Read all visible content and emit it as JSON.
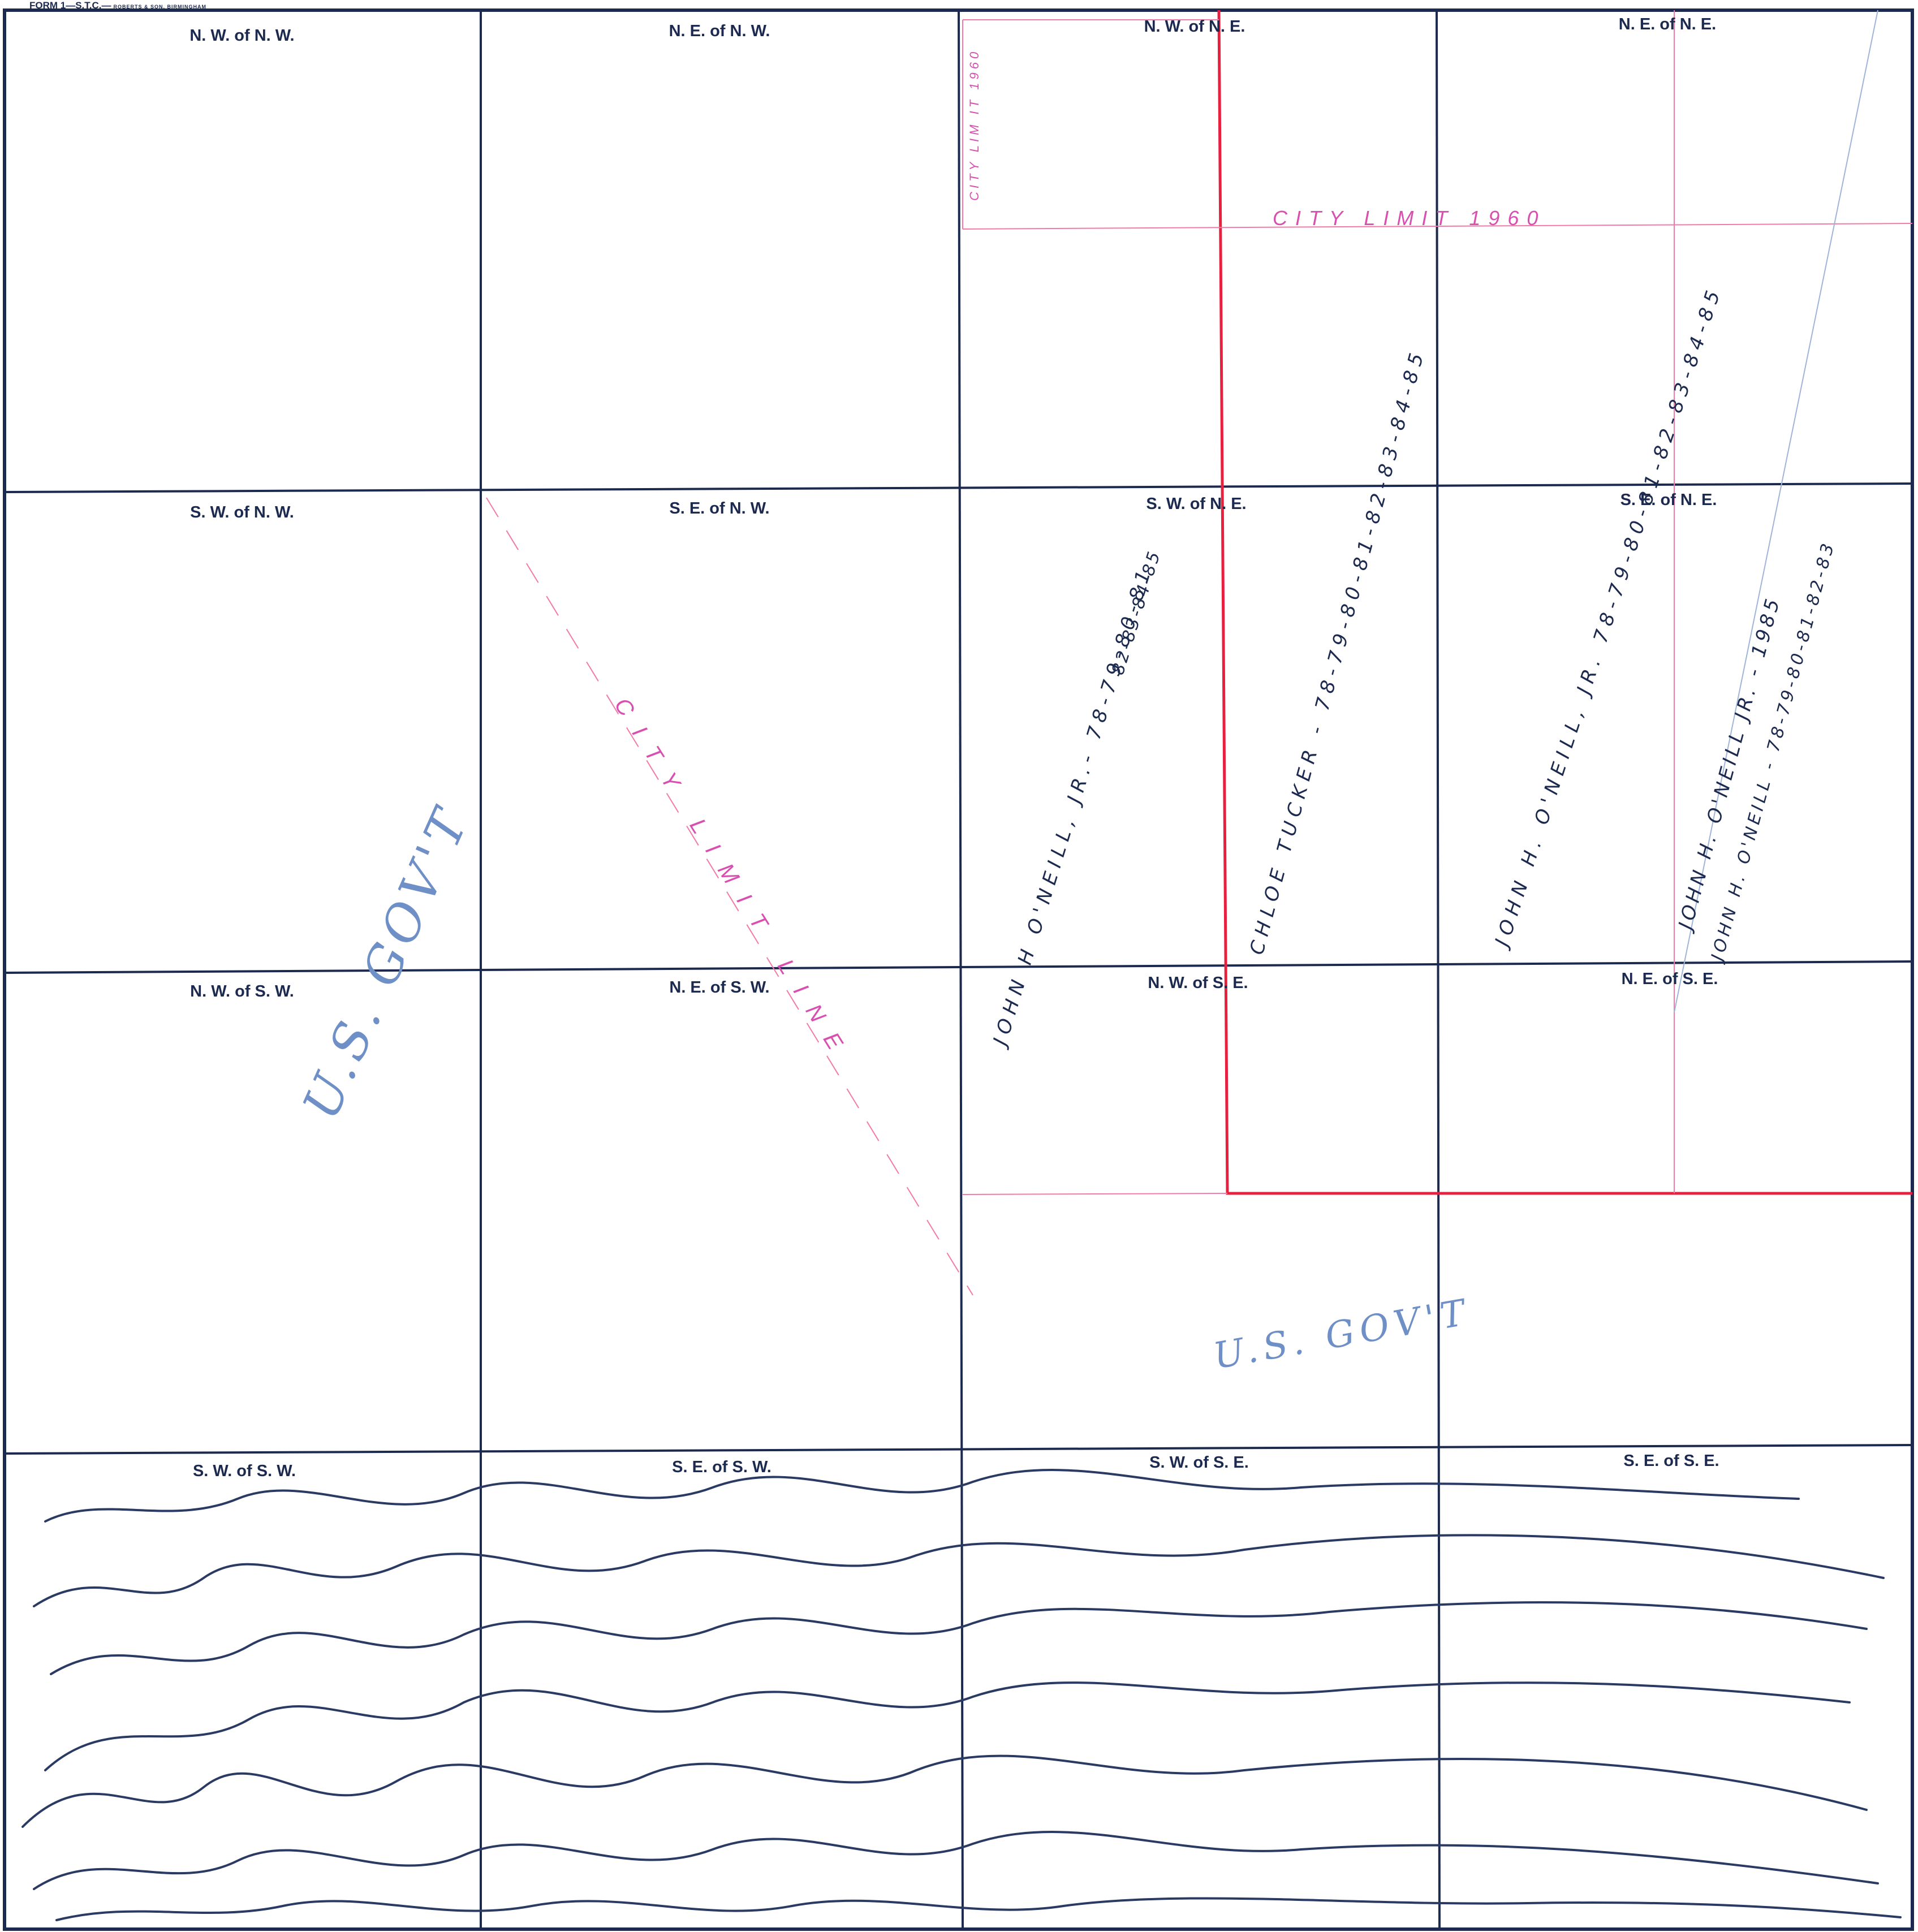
{
  "header": {
    "form_id": "FORM 1—S.T.C.—",
    "printer": "ROBERTS & SON, BIRMINGHAM"
  },
  "colors": {
    "ink": "#1d2a4f",
    "red_line": "#e8203f",
    "pink_line": "#f27aa8",
    "magenta_text": "#d94fb0",
    "pencil_blue": "#6f8fc7"
  },
  "quarter_labels": [
    [
      "N. W. of N. W.",
      "N. E. of N. W.",
      "N. W. of N. E.",
      "N. E. of N. E."
    ],
    [
      "S. W. of N. W.",
      "S. E. of N. W.",
      "S. W. of N. E.",
      "S. E. of N. E."
    ],
    [
      "N. W. of S. W.",
      "N. E. of S. W.",
      "N. W. of S. E.",
      "N. E. of S. E."
    ],
    [
      "S. W. of S. W.",
      "S. E. of S. W.",
      "S. W. of S. E.",
      "S. E. of S. E."
    ]
  ],
  "annotations": {
    "city_limit": "CITY LIMIT 1960",
    "city_limit_vertical": "CITY LIM IT 1960",
    "city_limit_diagonal": "CITY LIMIT LINE",
    "owner_1a": "JOHN H O'NEILL, JR.- 78-79-80-81",
    "owner_1b": "82-83-84-85",
    "owner_2": "CHLOE TUCKER - 78-79-80-81-82-83-84-85",
    "owner_3": "JOHN H. O'NEILL, JR. 78-79-80-81-82-83-84-85",
    "owner_4a": "JOHN H. O'NEILL JR. - 1985",
    "owner_4b": "JOHN H. O'NEILL - 78-79-80-81-82-83",
    "gov_1": "U.S. GOV'T",
    "gov_2": "U.S. GOV'T"
  }
}
